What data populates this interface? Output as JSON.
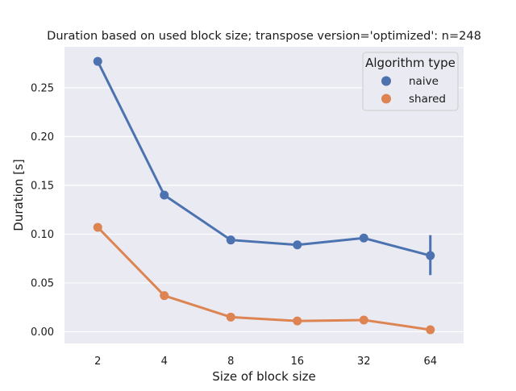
{
  "chart_data": {
    "type": "line",
    "title": "Duration based on used block size; transpose version='optimized': n=248",
    "xlabel": "Size of block size",
    "ylabel": "Duration [s]",
    "categories": [
      "2",
      "4",
      "8",
      "16",
      "32",
      "64"
    ],
    "ylim": [
      -0.012,
      0.292
    ],
    "yticks": [
      0.0,
      0.05,
      0.1,
      0.15,
      0.2,
      0.25
    ],
    "ytick_labels": [
      "0.00",
      "0.05",
      "0.10",
      "0.15",
      "0.20",
      "0.25"
    ],
    "grid": true,
    "legend": {
      "title": "Algorithm type",
      "position": "top-right"
    },
    "series": [
      {
        "name": "naive",
        "color": "#4c72b0",
        "values": [
          0.277,
          0.14,
          0.094,
          0.089,
          0.096,
          0.078
        ],
        "ci_low": [
          0.277,
          0.14,
          0.094,
          0.089,
          0.096,
          0.058
        ],
        "ci_high": [
          0.277,
          0.14,
          0.094,
          0.089,
          0.096,
          0.099
        ]
      },
      {
        "name": "shared",
        "color": "#dd8452",
        "values": [
          0.107,
          0.037,
          0.015,
          0.011,
          0.012,
          0.002
        ],
        "ci_low": [
          0.107,
          0.037,
          0.015,
          0.011,
          0.012,
          0.002
        ],
        "ci_high": [
          0.107,
          0.037,
          0.015,
          0.011,
          0.012,
          0.002
        ]
      }
    ]
  }
}
